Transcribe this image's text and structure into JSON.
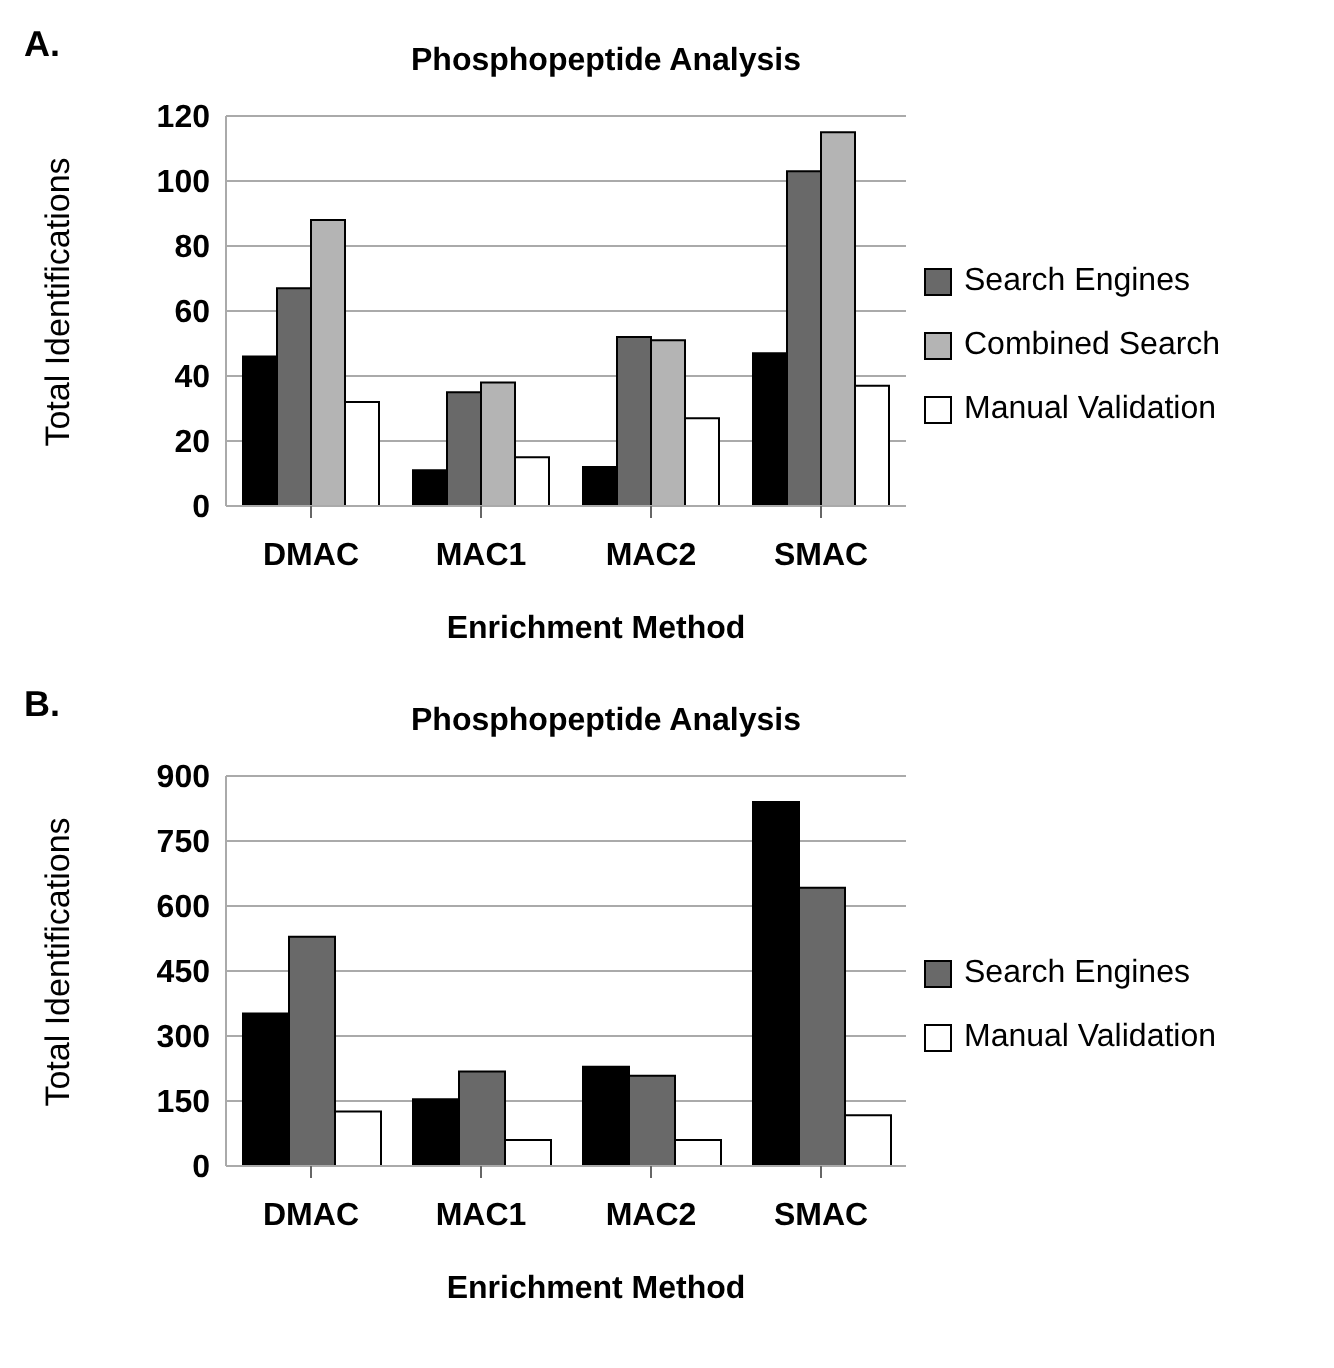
{
  "chart_data": [
    {
      "type": "bar",
      "title": "Phosphopeptide Analysis",
      "xlabel": "Enrichment Method",
      "ylabel": "Total Identifications",
      "annotations": [
        "A."
      ],
      "categories": [
        "DMAC",
        "MAC1",
        "MAC2",
        "SMAC"
      ],
      "series": [
        {
          "color": "#000000",
          "values": [
            46,
            11,
            12,
            47
          ]
        },
        {
          "name": "Search Engines",
          "color": "#696969",
          "values": [
            67,
            35,
            52,
            103
          ]
        },
        {
          "name": "Combined Search",
          "color": "#b4b4b4",
          "values": [
            88,
            38,
            51,
            115
          ]
        },
        {
          "name": "Manual Validation",
          "color": "#ffffff",
          "values": [
            32,
            15,
            27,
            37
          ]
        }
      ],
      "ylim": [
        0,
        120
      ],
      "yticks": [
        0,
        20,
        40,
        60,
        80,
        100,
        120
      ],
      "grid": "y",
      "legend": "right"
    },
    {
      "type": "bar",
      "title": "Phosphopeptide Analysis",
      "xlabel": "Enrichment Method",
      "ylabel": "Total Identifications",
      "annotations": [
        "B."
      ],
      "categories": [
        "DMAC",
        "MAC1",
        "MAC2",
        "SMAC"
      ],
      "series": [
        {
          "color": "#000000",
          "values": [
            352,
            154,
            229,
            840
          ]
        },
        {
          "name": "Search Engines",
          "color": "#696969",
          "values": [
            529,
            218,
            208,
            642
          ]
        },
        {
          "name": "Manual Validation",
          "color": "#ffffff",
          "values": [
            126,
            60,
            60,
            117
          ]
        }
      ],
      "ylim": [
        0,
        900
      ],
      "yticks": [
        0,
        150,
        300,
        450,
        600,
        750,
        900
      ],
      "grid": "y",
      "legend": "right"
    }
  ]
}
